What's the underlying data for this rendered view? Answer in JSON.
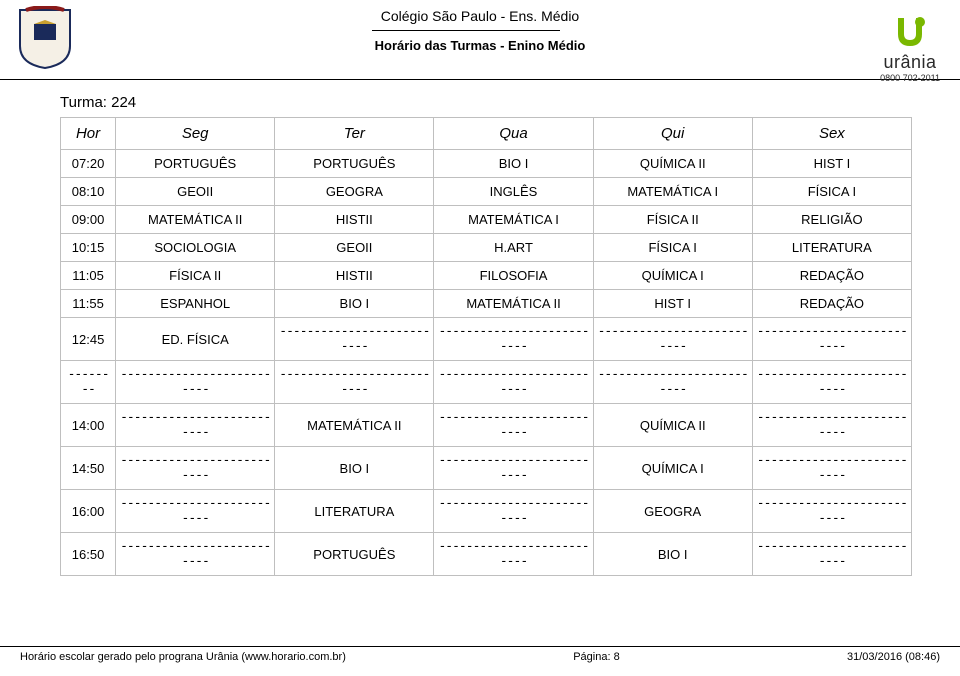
{
  "header": {
    "school": "Colégio São Paulo - Ens. Médio",
    "subtitle": "Horário das Turmas - Enino Médio",
    "logo_text": "urânia",
    "logo_phone": "0800 702-2011"
  },
  "turma_label": "Turma: 224",
  "table": {
    "headers": [
      "Hor",
      "Seg",
      "Ter",
      "Qua",
      "Qui",
      "Sex"
    ],
    "rows": [
      {
        "hor": "07:20",
        "seg": "PORTUGUÊS",
        "ter": "PORTUGUÊS",
        "qua": "BIO I",
        "qui": "QUÍMICA II",
        "sex": "HIST I"
      },
      {
        "hor": "08:10",
        "seg": "GEOII",
        "ter": "GEOGRA",
        "qua": "INGLÊS",
        "qui": "MATEMÁTICA I",
        "sex": "FÍSICA I"
      },
      {
        "hor": "09:00",
        "seg": "MATEMÁTICA II",
        "ter": "HISTII",
        "qua": "MATEMÁTICA I",
        "qui": "FÍSICA II",
        "sex": "RELIGIÃO"
      },
      {
        "hor": "10:15",
        "seg": "SOCIOLOGIA",
        "ter": "GEOII",
        "qua": "H.ART",
        "qui": "FÍSICA I",
        "sex": "LITERATURA"
      },
      {
        "hor": "11:05",
        "seg": "FÍSICA II",
        "ter": "HISTII",
        "qua": "FILOSOFIA",
        "qui": "QUÍMICA I",
        "sex": "REDAÇÃO"
      },
      {
        "hor": "11:55",
        "seg": "ESPANHOL",
        "ter": "BIO I",
        "qua": "MATEMÁTICA II",
        "qui": "HIST I",
        "sex": "REDAÇÃO"
      },
      {
        "hor": "12:45",
        "seg": "ED. FÍSICA",
        "ter": "DASH",
        "qua": "DASH",
        "qui": "DASH",
        "sex": "DASH"
      },
      {
        "hor": "DASH",
        "seg": "DASH",
        "ter": "DASH",
        "qua": "DASH",
        "qui": "DASH",
        "sex": "DASH"
      },
      {
        "hor": "14:00",
        "seg": "DASH",
        "ter": "MATEMÁTICA II",
        "qua": "DASH",
        "qui": "QUÍMICA II",
        "sex": "DASH"
      },
      {
        "hor": "14:50",
        "seg": "DASH",
        "ter": "BIO I",
        "qua": "DASH",
        "qui": "QUÍMICA I",
        "sex": "DASH"
      },
      {
        "hor": "16:00",
        "seg": "DASH",
        "ter": "LITERATURA",
        "qua": "DASH",
        "qui": "GEOGRA",
        "sex": "DASH"
      },
      {
        "hor": "16:50",
        "seg": "DASH",
        "ter": "PORTUGUÊS",
        "qua": "DASH",
        "qui": "BIO I",
        "sex": "DASH"
      }
    ],
    "dash_cell": "--------------------------",
    "dash_hor": "--------"
  },
  "footer": {
    "left": "Horário escolar gerado pelo prograna Urânia (www.horario.com.br)",
    "center": "Página: 8",
    "right": "31/03/2016    (08:46)"
  },
  "colors": {
    "border": "#bfbfbf",
    "text": "#000000",
    "logo_accent": "#7ab800"
  }
}
